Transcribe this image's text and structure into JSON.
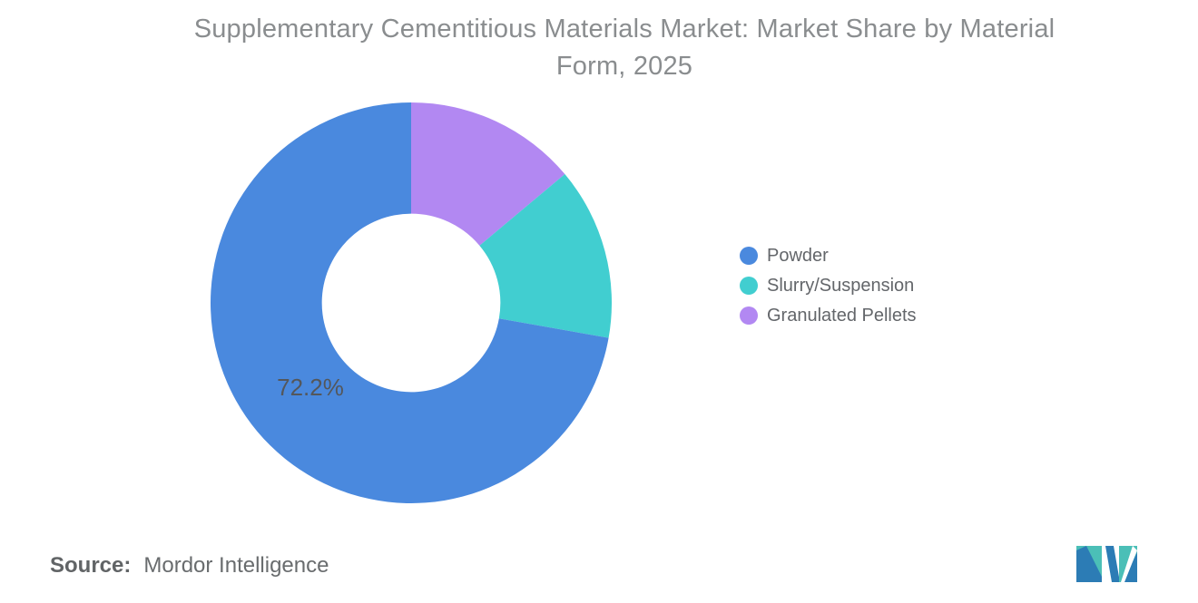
{
  "header": {
    "title": "Supplementary Cementitious Materials Market: Market Share by Material Form, 2025",
    "title_lines": [
      "Supplementary Cementitious Materials Market: Market Share by Material",
      "Form, 2025"
    ],
    "title_color": "#8a8d8f"
  },
  "chart_data": {
    "type": "pie",
    "subtype": "donut",
    "title": "Supplementary Cementitious Materials Market: Market Share by Material Form, 2025",
    "categories": [
      "Powder",
      "Slurry/Suspension",
      "Granulated Pellets"
    ],
    "values": [
      72.2,
      13.9,
      13.9
    ],
    "series": [
      {
        "name": "Powder",
        "value": 72.2,
        "color": "#4A89DE",
        "data_label": "72.2%"
      },
      {
        "name": "Slurry/Suspension",
        "value": 13.9,
        "color": "#41CED0",
        "data_label": ""
      },
      {
        "name": "Granulated Pellets",
        "value": 13.9,
        "color": "#B288F2",
        "data_label": ""
      }
    ],
    "legend_position": "right",
    "inner_radius_ratio": 0.445,
    "start_angle_deg": 0,
    "clockwise_order_from_top": [
      "Granulated Pellets",
      "Slurry/Suspension",
      "Powder"
    ],
    "shown_slice_label": "72.2%",
    "label_color": "#54575b",
    "background": "#ffffff"
  },
  "footer": {
    "source_label": "Source:",
    "source_value": "Mordor Intelligence"
  },
  "logo": {
    "alt": "Mordor Intelligence",
    "teal": "#4BBFB7",
    "blue": "#2C7CB5"
  }
}
